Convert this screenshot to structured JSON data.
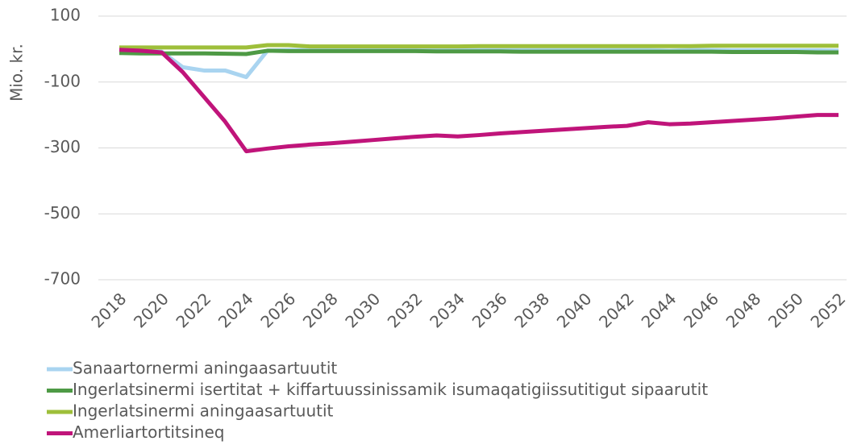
{
  "chart_data": {
    "type": "line",
    "y_label": "Mio. kr.",
    "x": [
      2018,
      2019,
      2020,
      2021,
      2022,
      2023,
      2024,
      2025,
      2026,
      2027,
      2028,
      2029,
      2030,
      2031,
      2032,
      2033,
      2034,
      2035,
      2036,
      2037,
      2038,
      2039,
      2040,
      2041,
      2042,
      2043,
      2044,
      2045,
      2046,
      2047,
      2048,
      2049,
      2050,
      2051,
      2052
    ],
    "xlim": [
      2018,
      2052
    ],
    "xticks": [
      2018,
      2020,
      2022,
      2024,
      2026,
      2028,
      2030,
      2032,
      2034,
      2036,
      2038,
      2040,
      2042,
      2044,
      2046,
      2048,
      2050,
      2052
    ],
    "ylim": [
      -700,
      100
    ],
    "yticks": [
      100,
      -100,
      -300,
      -500,
      -700
    ],
    "grid": true,
    "legend": "bottom",
    "series": [
      {
        "name": "Sanaartornermi aningaasartuutit",
        "color": "#a9d4f0",
        "values": [
          -2,
          -5,
          -8,
          -55,
          -65,
          -65,
          -85,
          -5,
          -3,
          -3,
          -3,
          -3,
          -3,
          -3,
          -3,
          -3,
          -3,
          -3,
          -3,
          -3,
          -3,
          -3,
          -3,
          -3,
          -3,
          -3,
          -5,
          -3,
          -3,
          -4,
          -4,
          -4,
          -4,
          -4,
          -5
        ]
      },
      {
        "name": "Ingerlatsinermi isertitat + kiffartuussinissamik isumaqatigiissutitigut sipaarutit",
        "color": "#4e9a45",
        "values": [
          -12,
          -13,
          -13,
          -13,
          -13,
          -14,
          -15,
          -5,
          -6,
          -6,
          -6,
          -6,
          -6,
          -6,
          -6,
          -7,
          -7,
          -7,
          -7,
          -8,
          -8,
          -8,
          -8,
          -8,
          -8,
          -8,
          -8,
          -8,
          -8,
          -9,
          -9,
          -9,
          -9,
          -10,
          -10
        ]
      },
      {
        "name": "Ingerlatsinermi aningaasartuutit",
        "color": "#9ebf3a",
        "values": [
          5,
          5,
          5,
          5,
          5,
          5,
          5,
          12,
          12,
          8,
          8,
          8,
          8,
          8,
          8,
          8,
          8,
          9,
          9,
          9,
          9,
          9,
          9,
          9,
          9,
          9,
          9,
          9,
          10,
          10,
          10,
          10,
          10,
          10,
          10
        ]
      },
      {
        "name": "Amerliartortitsineq",
        "color": "#c0147a",
        "values": [
          -2,
          -5,
          -10,
          -70,
          -145,
          -220,
          -310,
          -302,
          -295,
          -290,
          -286,
          -281,
          -276,
          -271,
          -266,
          -262,
          -265,
          -261,
          -256,
          -252,
          -248,
          -244,
          -240,
          -236,
          -233,
          -222,
          -228,
          -226,
          -222,
          -218,
          -214,
          -210,
          -205,
          -200,
          -200
        ]
      }
    ]
  }
}
